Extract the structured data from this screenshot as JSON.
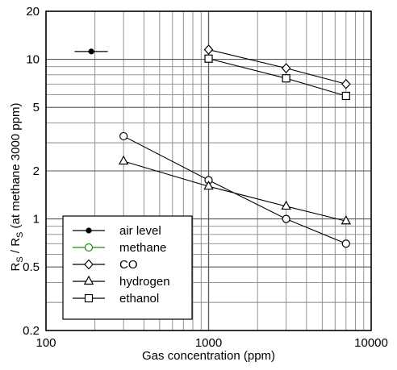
{
  "chart_data": {
    "type": "line",
    "title": "",
    "xlabel": "Gas concentration (ppm)",
    "ylabel": "R_S / R_S (at methane 3000 ppm)",
    "ylabel_parts": {
      "r1": "R",
      "s1": "S",
      "mid": " / R",
      "s2": "S",
      "tail": " (at methane 3000 ppm)"
    },
    "xscale": "log",
    "yscale": "log",
    "xlim": [
      100,
      10000
    ],
    "ylim": [
      0.2,
      20
    ],
    "xticks": [
      100,
      1000,
      10000
    ],
    "xtick_labels": [
      "100",
      "1000",
      "10000"
    ],
    "yticks": [
      0.2,
      0.5,
      1,
      2,
      5,
      10,
      20
    ],
    "ytick_labels": [
      "0.2",
      "0.5",
      "1",
      "2",
      "5",
      "10",
      "20"
    ],
    "grid": true,
    "legend_position": "bottom-left",
    "series": [
      {
        "name": "air level",
        "marker": "dot",
        "color": "#000000",
        "points": [
          [
            190,
            11.2
          ]
        ],
        "xerr": [
          150,
          240
        ]
      },
      {
        "name": "methane",
        "marker": "circle",
        "color": "#000000",
        "legend_color": "#1a8a1a",
        "points": [
          [
            300,
            3.3
          ],
          [
            1000,
            1.75
          ],
          [
            3000,
            1.0
          ],
          [
            7000,
            0.7
          ]
        ]
      },
      {
        "name": "CO",
        "marker": "diamond",
        "color": "#000000",
        "points": [
          [
            1000,
            11.5
          ],
          [
            3000,
            8.8
          ],
          [
            7000,
            7.0
          ]
        ]
      },
      {
        "name": "hydrogen",
        "marker": "triangle",
        "color": "#000000",
        "points": [
          [
            300,
            2.3
          ],
          [
            1000,
            1.6
          ],
          [
            3000,
            1.2
          ],
          [
            7000,
            0.97
          ]
        ]
      },
      {
        "name": "ethanol",
        "marker": "square",
        "color": "#000000",
        "points": [
          [
            1000,
            10.1
          ],
          [
            3000,
            7.6
          ],
          [
            7000,
            5.9
          ]
        ]
      }
    ]
  }
}
